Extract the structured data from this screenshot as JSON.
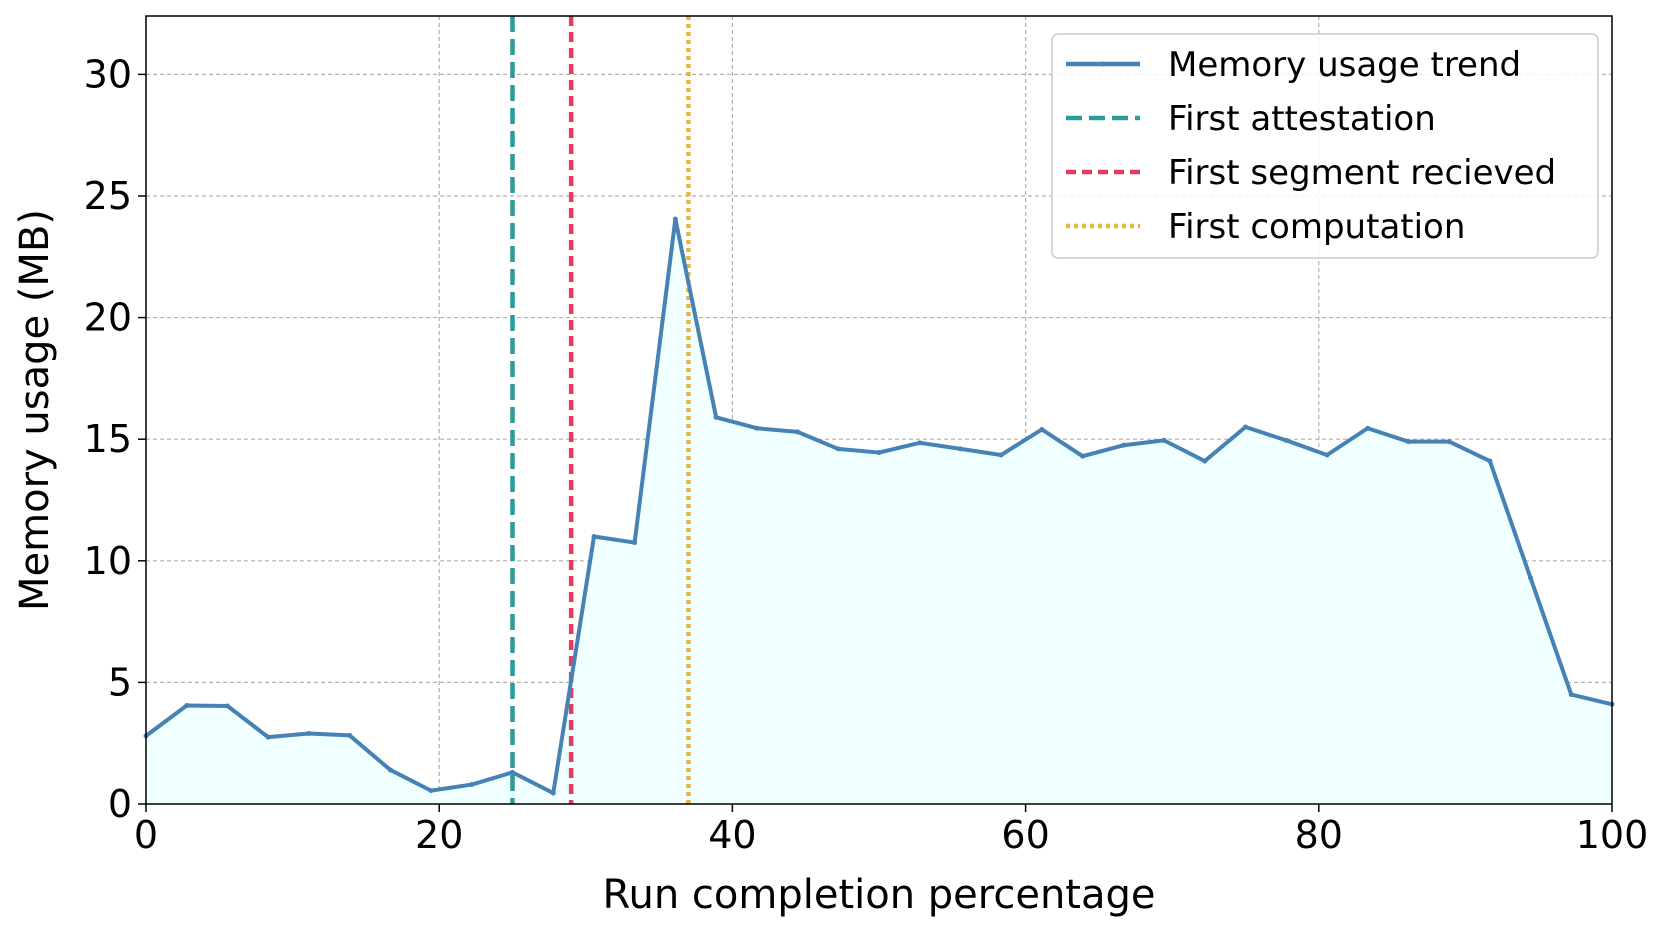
{
  "chart_data": {
    "type": "line",
    "title": "",
    "xlabel": "Run completion percentage",
    "ylabel": "Memory usage (MB)",
    "xlim": [
      0,
      100
    ],
    "ylim": [
      0,
      32.4
    ],
    "xticks": [
      0,
      20,
      40,
      60,
      80,
      100
    ],
    "yticks": [
      0,
      5,
      10,
      15,
      20,
      25,
      30
    ],
    "grid": true,
    "legend_position": "top-right",
    "series": [
      {
        "name": "Memory usage trend",
        "color": "#4682b4",
        "fill_color": "#f0ffff",
        "x": [
          0,
          2.78,
          5.56,
          8.33,
          11.11,
          13.89,
          16.67,
          19.44,
          22.22,
          25.0,
          27.78,
          30.56,
          33.33,
          36.11,
          38.89,
          41.67,
          44.44,
          47.22,
          50.0,
          52.78,
          55.56,
          58.33,
          61.11,
          63.89,
          66.67,
          69.44,
          72.22,
          75.0,
          77.78,
          80.56,
          83.33,
          86.11,
          88.89,
          91.67,
          94.44,
          97.22,
          100.0
        ],
        "y": [
          2.8,
          4.05,
          4.03,
          2.75,
          2.9,
          2.82,
          1.4,
          0.55,
          0.8,
          1.3,
          0.45,
          11.0,
          10.75,
          24.05,
          15.9,
          15.45,
          15.3,
          14.6,
          14.45,
          14.85,
          14.6,
          14.35,
          15.4,
          14.3,
          14.75,
          14.95,
          14.1,
          15.5,
          14.95,
          14.35,
          15.45,
          14.9,
          14.9,
          14.1,
          9.3,
          4.5,
          4.1
        ]
      }
    ],
    "vlines": [
      {
        "name": "First attestation",
        "x": 25.0,
        "color": "#2e9a9a",
        "style": "dashed"
      },
      {
        "name": "First segment recieved",
        "x": 29.0,
        "color": "#e23c5e",
        "style": "dashed"
      },
      {
        "name": "First computation",
        "x": 37.0,
        "color": "#e8b43c",
        "style": "dotted"
      }
    ]
  }
}
